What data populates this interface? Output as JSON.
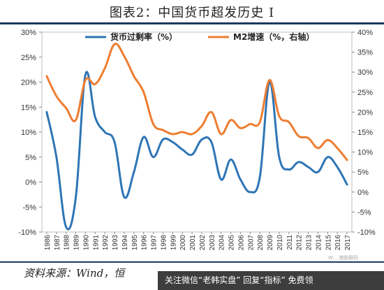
{
  "header": {
    "title": "图表2：中国货币超发历史 I"
  },
  "footer": {
    "source": "资料来源：Wind，恒",
    "promo": "关注微信“老韩实盘” 回复“指标” 免费领",
    "watermark": "W... 港股解码"
  },
  "chart_data": {
    "type": "line",
    "title": "图表2：中国货币超发历史 I",
    "x": [
      "1986",
      "1987",
      "1988",
      "1989",
      "1990",
      "1991",
      "1992",
      "1993",
      "1994",
      "1995",
      "1996",
      "1997",
      "1998",
      "1999",
      "2000",
      "2001",
      "2002",
      "2003",
      "2004",
      "2005",
      "2006",
      "2007",
      "2008",
      "2009",
      "2010",
      "2011",
      "2012",
      "2013",
      "2014",
      "2015",
      "2016",
      "2017"
    ],
    "series": [
      {
        "name": "货币过剩率（%）",
        "axis": "left",
        "color": "#2e75b6",
        "values": [
          14,
          5,
          -9,
          -3,
          21.5,
          13,
          10,
          8,
          -3,
          2,
          9,
          5,
          8.5,
          8,
          6.5,
          5.5,
          8.5,
          8,
          0.5,
          4.5,
          0.5,
          -2,
          1,
          20,
          5,
          2.5,
          4,
          3,
          2,
          5,
          3,
          -0.5
        ]
      },
      {
        "name": "M2增速（%，右轴）",
        "axis": "right",
        "color": "#ed7d31",
        "values": [
          29,
          24,
          21,
          18,
          28,
          27,
          31,
          37,
          34,
          29,
          25,
          17,
          15.5,
          14.5,
          15,
          14.5,
          16.5,
          20,
          14.5,
          18,
          16,
          17,
          17.5,
          28,
          19,
          17.5,
          14,
          13.5,
          11,
          13,
          11,
          8
        ]
      }
    ],
    "y_left": {
      "ylim": [
        -10,
        30
      ],
      "ticks": [
        "-10%",
        "-5%",
        "0%",
        "5%",
        "10%",
        "15%",
        "20%",
        "25%",
        "30%"
      ]
    },
    "y_right": {
      "ylim": [
        -10,
        40
      ],
      "ticks": [
        "-10%",
        "-5%",
        "0%",
        "5%",
        "10%",
        "15%",
        "20%",
        "25%",
        "30%",
        "35%",
        "40%"
      ]
    },
    "grid": false,
    "legend": "top"
  }
}
